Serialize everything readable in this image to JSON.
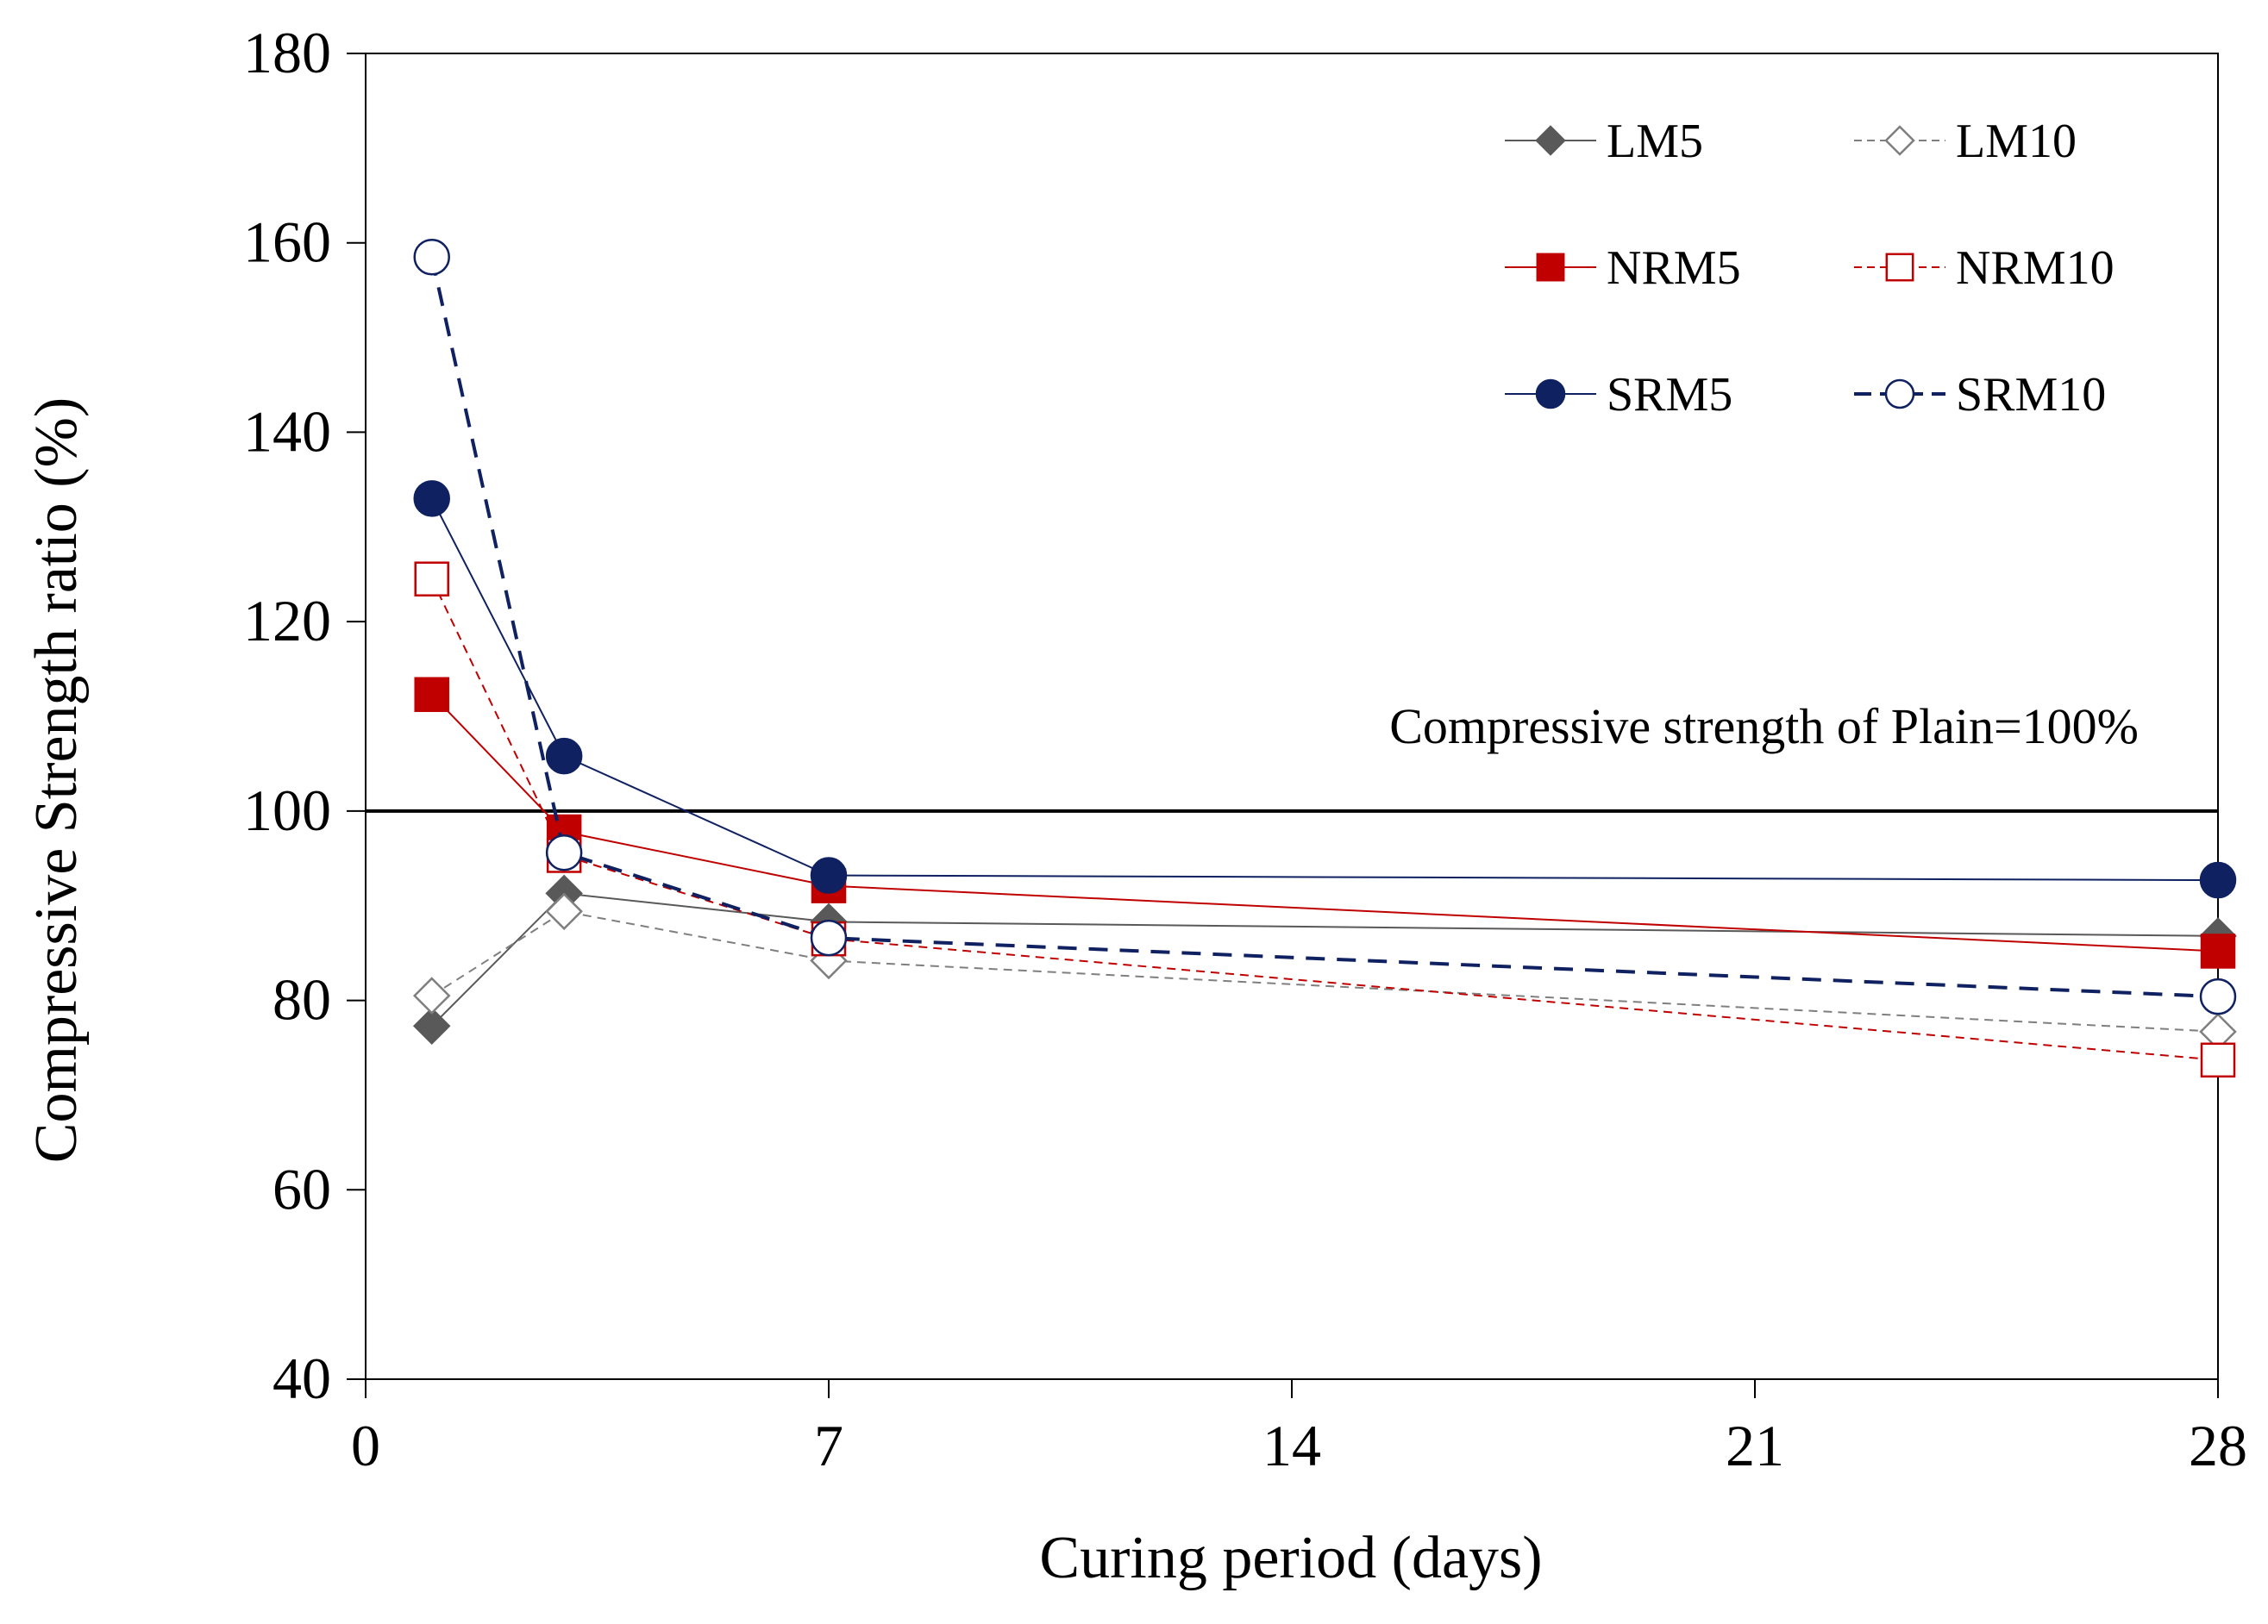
{
  "chart_data": {
    "type": "line",
    "title": "",
    "xlabel": "Curing period (days)",
    "ylabel": "Compressive Strength ratio (%)",
    "xlim": [
      0,
      28
    ],
    "ylim": [
      40,
      180
    ],
    "xticks": [
      0,
      7,
      14,
      21,
      28
    ],
    "yticks": [
      40,
      60,
      80,
      100,
      120,
      140,
      160,
      180
    ],
    "grid": false,
    "legend_position": "top-right",
    "reference_line": {
      "y": 100,
      "label": "Compressive strength of  Plain=100%",
      "color": "#000000"
    },
    "x": [
      1,
      3,
      7,
      28
    ],
    "series": [
      {
        "name": "LM5",
        "values": [
          77.3,
          91.3,
          88.3,
          86.8
        ],
        "color": "#595959",
        "marker": "diamond",
        "filled": true,
        "dash": "solid",
        "line_width": 2
      },
      {
        "name": "LM10",
        "values": [
          80.5,
          89.4,
          84.2,
          76.7
        ],
        "color": "#7f7f7f",
        "marker": "diamond",
        "filled": false,
        "dash": "dashed",
        "line_width": 2
      },
      {
        "name": "NRM5",
        "values": [
          112.3,
          97.8,
          92.1,
          85.2
        ],
        "color": "#c00000",
        "marker": "square",
        "filled": true,
        "dash": "solid",
        "line_width": 2
      },
      {
        "name": "NRM10",
        "values": [
          124.5,
          95.3,
          86.5,
          73.7
        ],
        "color": "#c00000",
        "marker": "square",
        "filled": false,
        "dash": "dashed",
        "line_width": 2
      },
      {
        "name": "SRM5",
        "values": [
          133.0,
          105.8,
          93.2,
          92.7
        ],
        "color": "#0f2160",
        "marker": "circle",
        "filled": true,
        "dash": "solid",
        "line_width": 2
      },
      {
        "name": "SRM10",
        "values": [
          158.5,
          95.6,
          86.6,
          80.4
        ],
        "color": "#0f2160",
        "marker": "circle",
        "filled": false,
        "dash": "bold-dashed",
        "line_width": 4
      }
    ]
  }
}
